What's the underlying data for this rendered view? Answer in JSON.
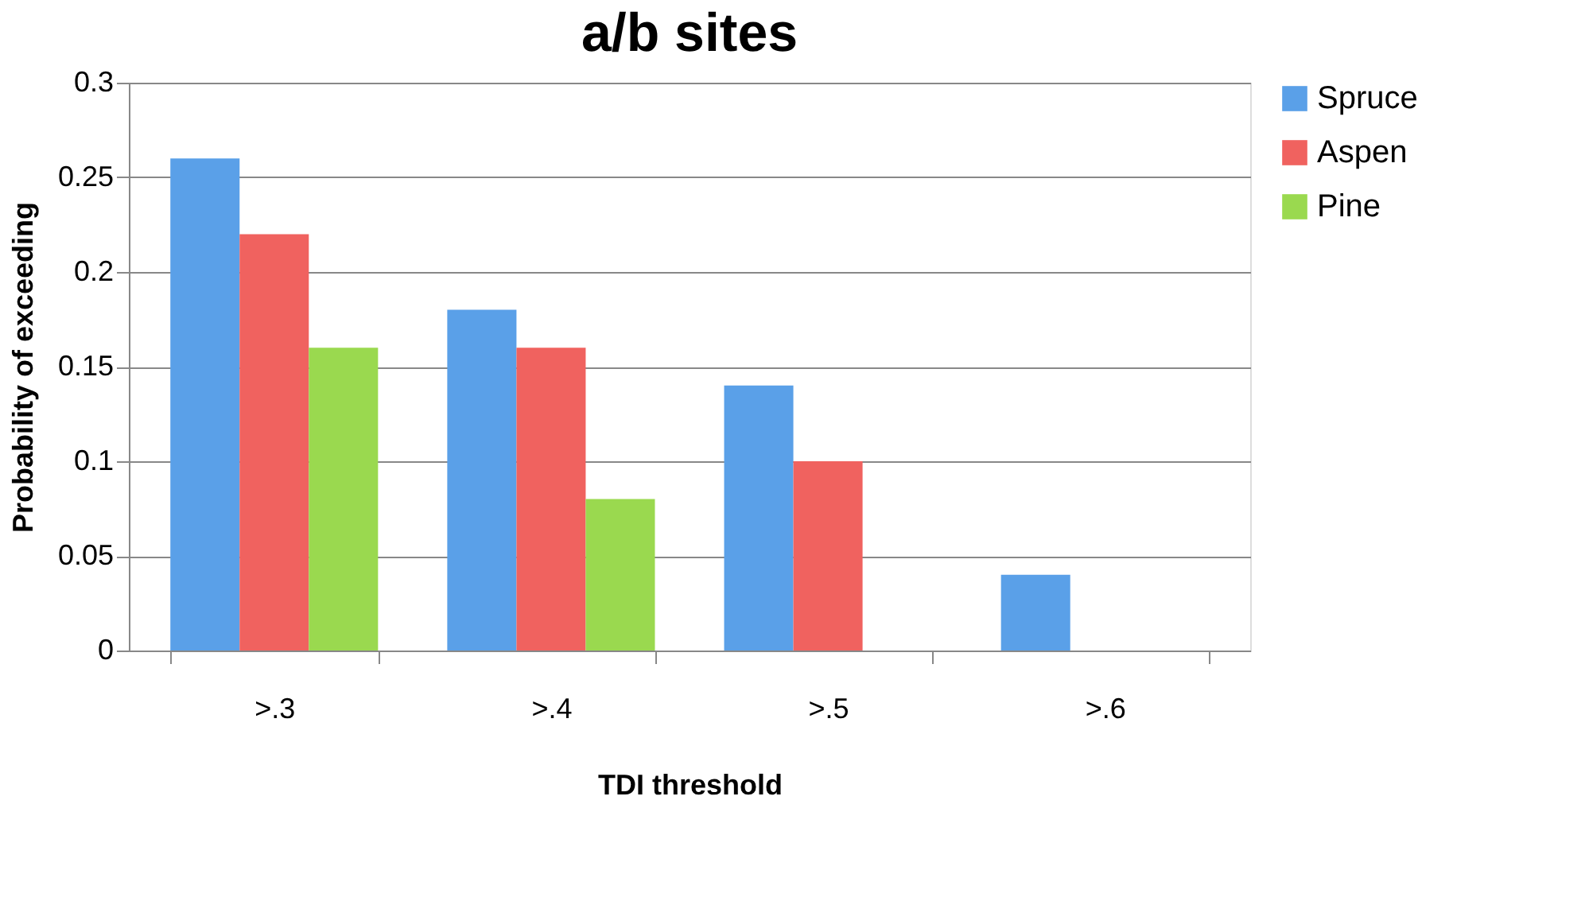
{
  "chart_data": {
    "type": "bar",
    "title": "a/b sites",
    "xlabel": "TDI threshold",
    "ylabel": "Probability of exceeding",
    "categories": [
      ">.3",
      ">.4",
      ">.5",
      ">.6"
    ],
    "series": [
      {
        "name": "Spruce",
        "color": "#5aa0e8",
        "values": [
          0.26,
          0.18,
          0.14,
          0.04
        ]
      },
      {
        "name": "Aspen",
        "color": "#f0625f",
        "values": [
          0.22,
          0.16,
          0.1,
          0
        ]
      },
      {
        "name": "Pine",
        "color": "#9ad94f",
        "values": [
          0.16,
          0.08,
          0,
          0
        ]
      }
    ],
    "ylim": [
      0,
      0.3
    ],
    "yticks": [
      0,
      0.05,
      0.1,
      0.15,
      0.2,
      0.25,
      0.3
    ],
    "grid": "y",
    "legend": "right"
  }
}
